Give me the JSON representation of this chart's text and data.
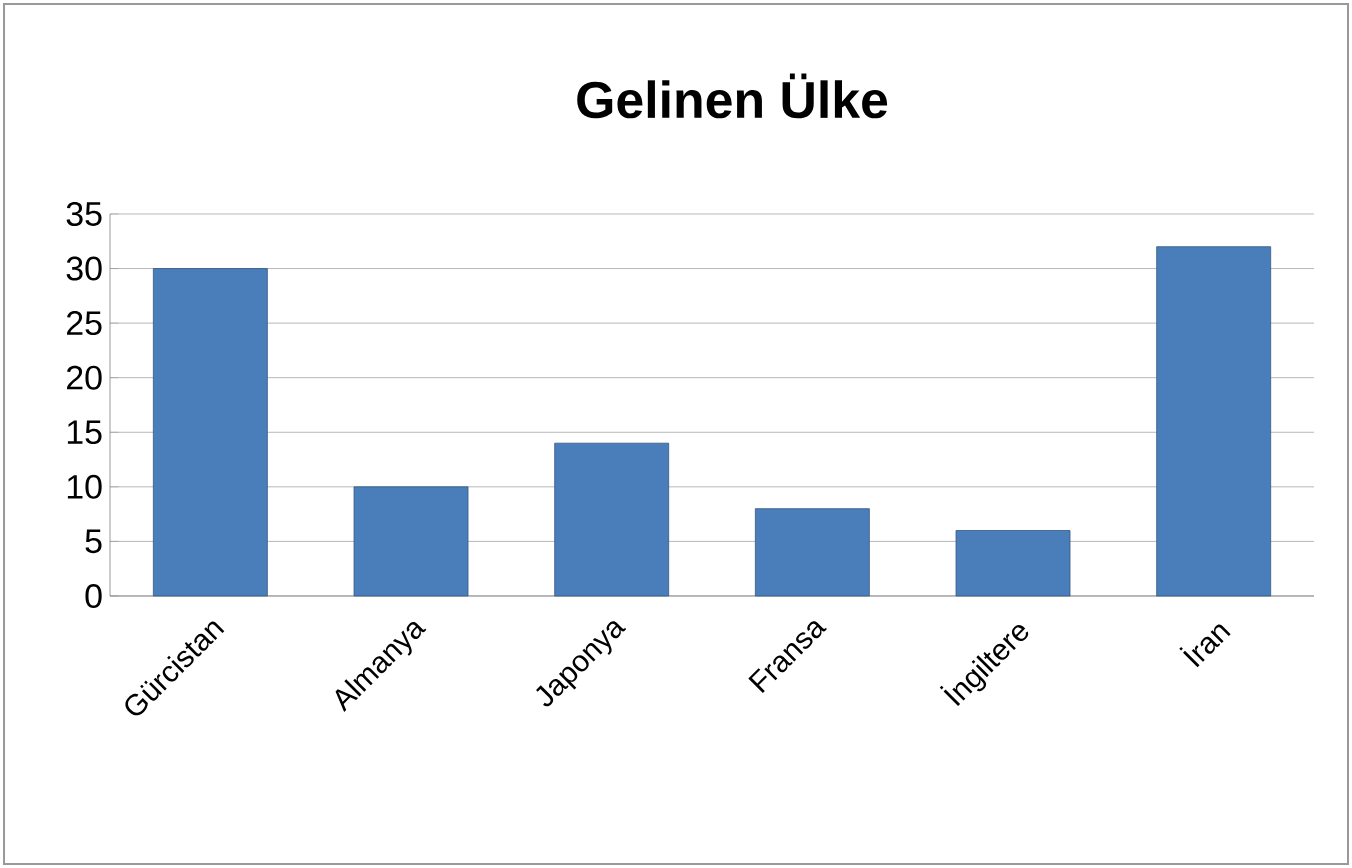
{
  "chart_data": {
    "type": "bar",
    "title": "Gelinen Ülke",
    "categories": [
      "Gürcistan",
      "Almanya",
      "Japonya",
      "Fransa",
      "İngiltere",
      "İran"
    ],
    "values": [
      30,
      10,
      14,
      8,
      6,
      32
    ],
    "color": "#4a7ebb",
    "ylim": [
      0,
      35
    ],
    "yticks": [
      0,
      5,
      10,
      15,
      20,
      25,
      30,
      35
    ],
    "grid": "y"
  }
}
